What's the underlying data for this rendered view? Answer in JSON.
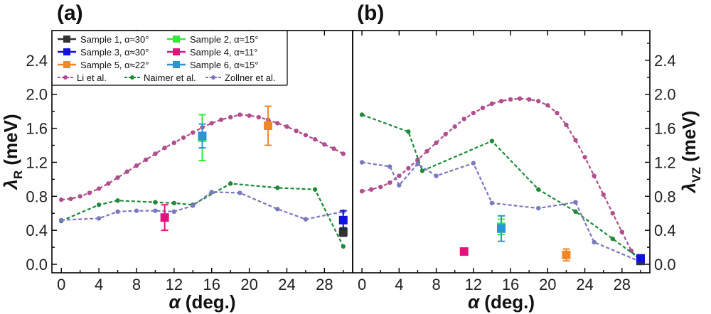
{
  "chart_data": [
    {
      "type": "scatter",
      "panel_label": "(a)",
      "xlabel": "α (deg.)",
      "ylabel": "λR (meV)",
      "ylabel_main": "λ",
      "ylabel_sub": "R",
      "ylabel_unit": " (meV)",
      "xlabel_symbol": "α",
      "xlabel_unit": " (deg.)",
      "xlim": [
        -1,
        31
      ],
      "ylim": [
        -0.1,
        2.75
      ],
      "xticks": [
        "0",
        "4",
        "8",
        "12",
        "16",
        "20",
        "24",
        "28"
      ],
      "yticks": [
        "0.0",
        "0.4",
        "0.8",
        "1.2",
        "1.6",
        "2.0",
        "2.4"
      ],
      "legend": {
        "position": "top",
        "samples": [
          {
            "label": "Sample 1,  α≈30°",
            "color": "#333333"
          },
          {
            "label": "Sample 2,  α≈15°",
            "color": "#38e838"
          },
          {
            "label": "Sample 3,  α≈30°",
            "color": "#1010e0"
          },
          {
            "label": "Sample 4,  α≈11°",
            "color": "#e0147d"
          },
          {
            "label": "Sample 5,  α≈22°",
            "color": "#f08828"
          },
          {
            "label": "Sample 6,  α≈15°",
            "color": "#2b94d4"
          }
        ],
        "models": [
          {
            "label": "Li et al.",
            "color": "#b04e8e"
          },
          {
            "label": "Naimer et al.",
            "color": "#1e8a3a"
          },
          {
            "label": "Zollner et al.",
            "color": "#7a78bf"
          }
        ]
      },
      "series": [
        {
          "name": "Li et al.",
          "kind": "model",
          "color": "#b04e8e",
          "x": [
            0,
            1,
            2,
            3,
            4,
            5,
            6,
            7,
            8,
            9,
            10,
            11,
            12,
            13,
            14,
            15,
            16,
            17,
            18,
            19,
            20,
            21,
            22,
            23,
            24,
            25,
            26,
            27,
            28,
            29,
            30
          ],
          "y": [
            0.76,
            0.77,
            0.8,
            0.84,
            0.89,
            0.95,
            1.02,
            1.09,
            1.16,
            1.23,
            1.3,
            1.37,
            1.43,
            1.49,
            1.55,
            1.61,
            1.66,
            1.7,
            1.73,
            1.76,
            1.75,
            1.73,
            1.7,
            1.66,
            1.62,
            1.57,
            1.52,
            1.47,
            1.41,
            1.36,
            1.3
          ]
        },
        {
          "name": "Naimer et al.",
          "kind": "model",
          "color": "#1e8a3a",
          "x": [
            0,
            4,
            6,
            10,
            12,
            14,
            18,
            23,
            27,
            30
          ],
          "y": [
            0.51,
            0.7,
            0.75,
            0.73,
            0.72,
            0.7,
            0.95,
            0.9,
            0.88,
            0.21
          ]
        },
        {
          "name": "Zollner et al.",
          "kind": "model",
          "color": "#7a78bf",
          "x": [
            0,
            4,
            6,
            8,
            10,
            12,
            14,
            16,
            19,
            23,
            26,
            30
          ],
          "y": [
            0.52,
            0.54,
            0.62,
            0.63,
            0.63,
            0.62,
            0.69,
            0.85,
            0.84,
            0.65,
            0.53,
            0.62
          ]
        },
        {
          "name": "Sample 1",
          "kind": "sample",
          "color": "#333333",
          "x": [
            30
          ],
          "y": [
            0.38
          ],
          "err": [
            0.05
          ]
        },
        {
          "name": "Sample 2",
          "kind": "sample",
          "color": "#38e838",
          "x": [
            15
          ],
          "y": [
            1.49
          ],
          "err": [
            0.27
          ]
        },
        {
          "name": "Sample 3",
          "kind": "sample",
          "color": "#1010e0",
          "x": [
            30
          ],
          "y": [
            0.52
          ],
          "err": [
            0.11
          ]
        },
        {
          "name": "Sample 4",
          "kind": "sample",
          "color": "#e0147d",
          "x": [
            11
          ],
          "y": [
            0.55
          ],
          "err": [
            0.15
          ]
        },
        {
          "name": "Sample 5",
          "kind": "sample",
          "color": "#f08828",
          "x": [
            22
          ],
          "y": [
            1.63
          ],
          "err": [
            0.23
          ]
        },
        {
          "name": "Sample 6",
          "kind": "sample",
          "color": "#2b94d4",
          "x": [
            15
          ],
          "y": [
            1.51
          ],
          "err": [
            0.14
          ]
        }
      ]
    },
    {
      "type": "scatter",
      "panel_label": "(b)",
      "xlabel": "α (deg.)",
      "ylabel": "λVZ (meV)",
      "ylabel_main": "λ",
      "ylabel_sub": "VZ",
      "ylabel_unit": " (meV)",
      "xlabel_symbol": "α",
      "xlabel_unit": " (deg.)",
      "xlim": [
        -1,
        31
      ],
      "ylim": [
        -0.1,
        2.75
      ],
      "xticks": [
        "0",
        "4",
        "8",
        "12",
        "16",
        "20",
        "24",
        "28"
      ],
      "yticks": [
        "0.0",
        "0.4",
        "0.8",
        "1.2",
        "1.6",
        "2.0",
        "2.4"
      ],
      "series": [
        {
          "name": "Li et al.",
          "kind": "model",
          "color": "#b04e8e",
          "x": [
            0,
            1,
            2,
            3,
            4,
            5,
            6,
            7,
            8,
            9,
            10,
            11,
            12,
            13,
            14,
            15,
            16,
            17,
            18,
            19,
            20,
            21,
            22,
            23,
            24,
            25,
            26,
            27,
            28,
            29,
            30
          ],
          "y": [
            0.86,
            0.88,
            0.91,
            0.96,
            1.04,
            1.13,
            1.23,
            1.33,
            1.43,
            1.53,
            1.62,
            1.71,
            1.78,
            1.84,
            1.89,
            1.92,
            1.94,
            1.95,
            1.94,
            1.92,
            1.87,
            1.78,
            1.64,
            1.46,
            1.26,
            1.04,
            0.82,
            0.6,
            0.38,
            0.16,
            0.04
          ]
        },
        {
          "name": "Naimer et al.",
          "kind": "model",
          "color": "#1e8a3a",
          "x": [
            0,
            5,
            6.5,
            14,
            19,
            23,
            27,
            30
          ],
          "y": [
            1.76,
            1.56,
            1.1,
            1.45,
            0.88,
            0.62,
            0.3,
            0.06
          ]
        },
        {
          "name": "Zollner et al.",
          "kind": "model",
          "color": "#7a78bf",
          "x": [
            0,
            3,
            4,
            6,
            8,
            12,
            14,
            19,
            23,
            25,
            30
          ],
          "y": [
            1.2,
            1.15,
            0.93,
            1.18,
            1.04,
            1.19,
            0.72,
            0.66,
            0.73,
            0.26,
            0.03
          ]
        },
        {
          "name": "Sample 1",
          "kind": "sample",
          "color": "#333333",
          "x": [
            30
          ],
          "y": [
            0.04
          ],
          "err": [
            0.03
          ]
        },
        {
          "name": "Sample 2",
          "kind": "sample",
          "color": "#38e838",
          "x": [
            15
          ],
          "y": [
            0.44
          ],
          "err": [
            0.09
          ]
        },
        {
          "name": "Sample 3",
          "kind": "sample",
          "color": "#1010e0",
          "x": [
            30
          ],
          "y": [
            0.07
          ],
          "err": [
            0.03
          ]
        },
        {
          "name": "Sample 4",
          "kind": "sample",
          "color": "#e0147d",
          "x": [
            11
          ],
          "y": [
            0.15
          ],
          "err": [
            0.02
          ]
        },
        {
          "name": "Sample 5",
          "kind": "sample",
          "color": "#f08828",
          "x": [
            22
          ],
          "y": [
            0.11
          ],
          "err": [
            0.07
          ]
        },
        {
          "name": "Sample 6",
          "kind": "sample",
          "color": "#2b94d4",
          "x": [
            15
          ],
          "y": [
            0.42
          ],
          "err": [
            0.15
          ]
        }
      ]
    }
  ]
}
